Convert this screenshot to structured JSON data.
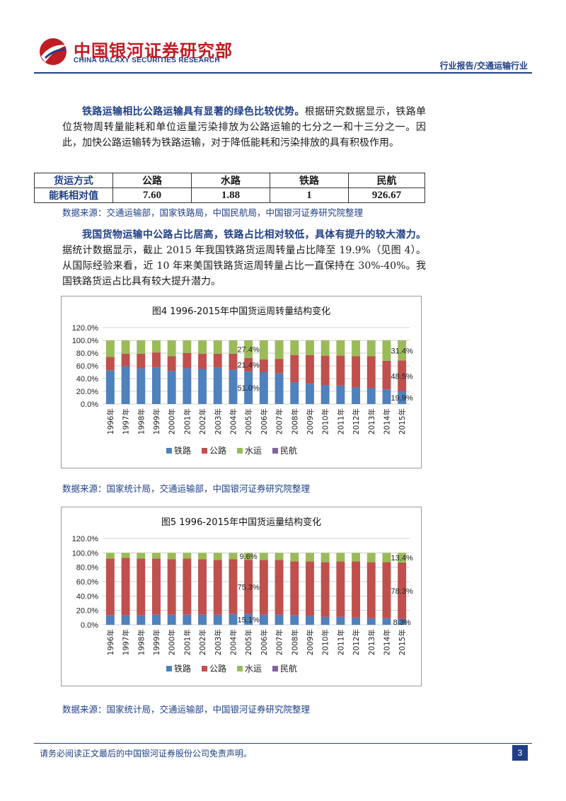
{
  "header": {
    "logo_cn": "中国银河证券研究部",
    "logo_en": "CHINA GALAXY SECURITIES RESEARCH",
    "report_type": "行业报告/交通运输行业"
  },
  "paragraph1": {
    "bold_lead": "铁路运输相比公路运输具有显著的绿色比较优势。",
    "text": "根据研究数据显示，铁路单位货物周转量能耗和单位运量污染排放为公路运输的七分之一和十三分之一。因此，加快公路运输转为铁路运输，对于降低能耗和污染排放的具有积极作用。"
  },
  "table": {
    "header_label": "货运方式",
    "row_label": "能耗相对值",
    "columns": [
      "公路",
      "水路",
      "铁路",
      "民航"
    ],
    "values": [
      "7.60",
      "1.88",
      "1",
      "926.67"
    ]
  },
  "source1": "数据来源：交通运输部，国家铁路局，中国民航局，中国银河证券研究院整理",
  "paragraph2": {
    "bold_lead": "我国货物运输中公路占比居高，铁路占比相对较低，具体有提升的较大潜力。",
    "text": "据统计数据显示，截止 2015 年我国铁路货运周转量占比降至 19.9%（见图 4）。从国际经验来看，近 10 年来美国铁路货运周转量占比一直保持在 30%-40%。我国铁路货运占比具有较大提升潜力。"
  },
  "chart1": {
    "title": "图4 1996-2015年中国货运周转量结构变化",
    "source": "数据来源：国家统计局，交通运输部，中国银河证券研究院整理"
  },
  "chart2": {
    "title": "图5 1996-2015年中国货运量结构变化",
    "source": "数据来源：国家统计局，交通运输部，中国银河证券研究院整理"
  },
  "chart_data": [
    {
      "type": "bar",
      "stacked": true,
      "title": "图4 1996-2015年中国货运周转量结构变化",
      "categories": [
        "1996年",
        "1997年",
        "1998年",
        "1999年",
        "2000年",
        "2001年",
        "2002年",
        "2003年",
        "2004年",
        "2005年",
        "2006年",
        "2007年",
        "2008年",
        "2009年",
        "2010年",
        "2011年",
        "2012年",
        "2013年",
        "2014年",
        "2015年"
      ],
      "ylim": [
        0,
        120
      ],
      "yticks": [
        "0.0%",
        "20.0%",
        "40.0%",
        "60.0%",
        "80.0%",
        "100.0%",
        "120.0%"
      ],
      "grid": true,
      "legend": "bottom",
      "series": [
        {
          "name": "铁路",
          "color": "#4f81bd",
          "values": [
            53,
            59,
            56,
            57,
            52,
            56,
            55,
            57,
            54,
            51,
            50,
            48,
            34,
            32,
            30,
            29,
            26,
            25,
            23,
            19.9
          ]
        },
        {
          "name": "公路",
          "color": "#c0504d",
          "values": [
            21,
            20,
            23,
            24,
            23,
            24,
            24,
            22,
            25,
            21.4,
            20,
            23,
            43,
            45,
            46,
            47,
            49,
            50,
            45,
            48.5
          ]
        },
        {
          "name": "水运",
          "color": "#9bbb59",
          "values": [
            26,
            21,
            21,
            19,
            25,
            20,
            21,
            21,
            21,
            27.4,
            30,
            29,
            23,
            23,
            24,
            24,
            25,
            25,
            32,
            31.4
          ]
        },
        {
          "name": "民航",
          "color": "#8064a2",
          "values": [
            0,
            0,
            0,
            0,
            0,
            0,
            0,
            0,
            0,
            0.2,
            0,
            0,
            0,
            0,
            0,
            0,
            0,
            0,
            0,
            0.2
          ]
        }
      ],
      "data_labels": [
        {
          "category": "2005年",
          "series": "水运",
          "text": "27.4%"
        },
        {
          "category": "2005年",
          "series": "公路",
          "text": "21.4%"
        },
        {
          "category": "2005年",
          "series": "铁路",
          "text": "51.0%"
        },
        {
          "category": "2015年",
          "series": "水运",
          "text": "31.4%"
        },
        {
          "category": "2015年",
          "series": "公路",
          "text": "48.5%"
        },
        {
          "category": "2015年",
          "series": "铁路",
          "text": "19.9%"
        }
      ]
    },
    {
      "type": "bar",
      "stacked": true,
      "title": "图5 1996-2015年中国货运量结构变化",
      "categories": [
        "1996年",
        "1997年",
        "1998年",
        "1999年",
        "2000年",
        "2001年",
        "2002年",
        "2003年",
        "2004年",
        "2005年",
        "2006年",
        "2007年",
        "2008年",
        "2009年",
        "2010年",
        "2011年",
        "2012年",
        "2013年",
        "2014年",
        "2015年"
      ],
      "ylim": [
        0,
        100
      ],
      "yticks": [
        "0.0%",
        "20.0%",
        "40.0%",
        "60.0%",
        "80.0%",
        "100.0%",
        "120.0%"
      ],
      "grid": true,
      "legend": "bottom",
      "series": [
        {
          "name": "铁路",
          "color": "#4f81bd",
          "values": [
            13,
            13,
            13,
            14,
            14,
            14,
            14,
            14,
            15,
            15.1,
            14,
            14,
            13,
            12,
            11,
            11,
            10,
            9,
            9,
            8.3
          ]
        },
        {
          "name": "公路",
          "color": "#c0504d",
          "values": [
            79,
            80,
            79,
            78,
            77,
            78,
            77,
            76,
            76,
            75.3,
            76,
            76,
            75,
            76,
            76,
            77,
            78,
            78,
            78,
            78.3
          ]
        },
        {
          "name": "水运",
          "color": "#9bbb59",
          "values": [
            8,
            7,
            8,
            8,
            9,
            8,
            9,
            10,
            9,
            9.6,
            10,
            10,
            12,
            12,
            13,
            12,
            12,
            13,
            13,
            13.4
          ]
        },
        {
          "name": "民航",
          "color": "#8064a2",
          "values": [
            0,
            0,
            0,
            0,
            0,
            0,
            0,
            0,
            0,
            0,
            0,
            0,
            0,
            0,
            0,
            0,
            0,
            0,
            0,
            0
          ]
        }
      ],
      "data_labels": [
        {
          "category": "2005年",
          "series": "水运",
          "text": "9.6%"
        },
        {
          "category": "2005年",
          "series": "公路",
          "text": "75.3%"
        },
        {
          "category": "2005年",
          "series": "铁路",
          "text": "15.1%"
        },
        {
          "category": "2015年",
          "series": "水运",
          "text": "13.4%"
        },
        {
          "category": "2015年",
          "series": "公路",
          "text": "78.3%"
        },
        {
          "category": "2015年",
          "series": "铁路",
          "text": "8.3%"
        }
      ]
    }
  ],
  "footer": {
    "disclaimer": "请务必阅读正文最后的中国银河证券股份公司免责声明。",
    "page_number": "3"
  }
}
